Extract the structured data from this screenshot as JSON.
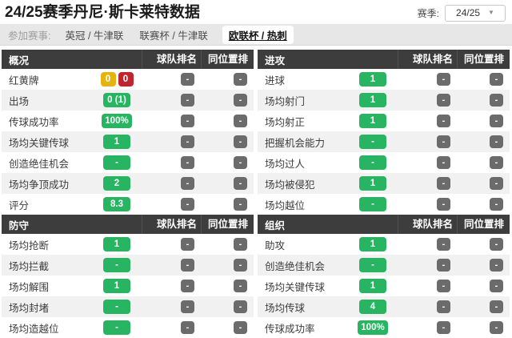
{
  "page": {
    "title": "24/25赛季丹尼·斯卡莱特数据",
    "season_label": "赛季:",
    "season_value": "24/25"
  },
  "tabs": {
    "label": "参加赛事:",
    "items": [
      {
        "label": "英冠 / 牛津联",
        "selected": false
      },
      {
        "label": "联赛杯 / 牛津联",
        "selected": false
      },
      {
        "label": "欧联杯 / 热刺",
        "selected": true
      }
    ]
  },
  "columns": {
    "team_rank": "球队排名",
    "position_rank": "同位置排名"
  },
  "colors": {
    "green": "#27b562",
    "yellow": "#e5b40e",
    "red": "#c0242e",
    "gray": "#6b6b6b",
    "header_bg": "#3d3d3d"
  },
  "sections": [
    {
      "title": "概况",
      "rows": [
        {
          "label": "红黄牌",
          "values": [
            {
              "text": "0",
              "color": "yellow"
            },
            {
              "text": "0",
              "color": "red"
            }
          ],
          "team_rank": "-",
          "position_rank": "-"
        },
        {
          "label": "出场",
          "values": [
            {
              "text": "0 (1)",
              "color": "green"
            }
          ],
          "team_rank": "-",
          "position_rank": "-"
        },
        {
          "label": "传球成功率",
          "values": [
            {
              "text": "100%",
              "color": "green"
            }
          ],
          "team_rank": "-",
          "position_rank": "-"
        },
        {
          "label": "场均关键传球",
          "values": [
            {
              "text": "1",
              "color": "green"
            }
          ],
          "team_rank": "-",
          "position_rank": "-"
        },
        {
          "label": "创造绝佳机会",
          "values": [
            {
              "text": "-",
              "color": "green"
            }
          ],
          "team_rank": "-",
          "position_rank": "-"
        },
        {
          "label": "场均争顶成功",
          "values": [
            {
              "text": "2",
              "color": "green"
            }
          ],
          "team_rank": "-",
          "position_rank": "-"
        },
        {
          "label": "评分",
          "values": [
            {
              "text": "8.3",
              "color": "green"
            }
          ],
          "team_rank": "-",
          "position_rank": "-"
        }
      ]
    },
    {
      "title": "进攻",
      "rows": [
        {
          "label": "进球",
          "values": [
            {
              "text": "1",
              "color": "green"
            }
          ],
          "team_rank": "-",
          "position_rank": "-"
        },
        {
          "label": "场均射门",
          "values": [
            {
              "text": "1",
              "color": "green"
            }
          ],
          "team_rank": "-",
          "position_rank": "-"
        },
        {
          "label": "场均射正",
          "values": [
            {
              "text": "1",
              "color": "green"
            }
          ],
          "team_rank": "-",
          "position_rank": "-"
        },
        {
          "label": "把握机会能力",
          "values": [
            {
              "text": "-",
              "color": "green"
            }
          ],
          "team_rank": "-",
          "position_rank": "-"
        },
        {
          "label": "场均过人",
          "values": [
            {
              "text": "-",
              "color": "green"
            }
          ],
          "team_rank": "-",
          "position_rank": "-"
        },
        {
          "label": "场均被侵犯",
          "values": [
            {
              "text": "1",
              "color": "green"
            }
          ],
          "team_rank": "-",
          "position_rank": "-"
        },
        {
          "label": "场均越位",
          "values": [
            {
              "text": "-",
              "color": "green"
            }
          ],
          "team_rank": "-",
          "position_rank": "-"
        }
      ]
    },
    {
      "title": "防守",
      "rows": [
        {
          "label": "场均抢断",
          "values": [
            {
              "text": "1",
              "color": "green"
            }
          ],
          "team_rank": "-",
          "position_rank": "-"
        },
        {
          "label": "场均拦截",
          "values": [
            {
              "text": "-",
              "color": "green"
            }
          ],
          "team_rank": "-",
          "position_rank": "-"
        },
        {
          "label": "场均解围",
          "values": [
            {
              "text": "1",
              "color": "green"
            }
          ],
          "team_rank": "-",
          "position_rank": "-"
        },
        {
          "label": "场均封堵",
          "values": [
            {
              "text": "-",
              "color": "green"
            }
          ],
          "team_rank": "-",
          "position_rank": "-"
        },
        {
          "label": "场均造越位",
          "values": [
            {
              "text": "-",
              "color": "green"
            }
          ],
          "team_rank": "-",
          "position_rank": "-"
        }
      ]
    },
    {
      "title": "组织",
      "rows": [
        {
          "label": "助攻",
          "values": [
            {
              "text": "1",
              "color": "green"
            }
          ],
          "team_rank": "-",
          "position_rank": "-"
        },
        {
          "label": "创造绝佳机会",
          "values": [
            {
              "text": "-",
              "color": "green"
            }
          ],
          "team_rank": "-",
          "position_rank": "-"
        },
        {
          "label": "场均关键传球",
          "values": [
            {
              "text": "1",
              "color": "green"
            }
          ],
          "team_rank": "-",
          "position_rank": "-"
        },
        {
          "label": "场均传球",
          "values": [
            {
              "text": "4",
              "color": "green"
            }
          ],
          "team_rank": "-",
          "position_rank": "-"
        },
        {
          "label": "传球成功率",
          "values": [
            {
              "text": "100%",
              "color": "green"
            }
          ],
          "team_rank": "-",
          "position_rank": "-"
        }
      ]
    }
  ]
}
